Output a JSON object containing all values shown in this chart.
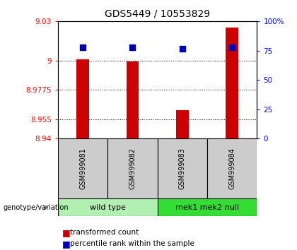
{
  "title": "GDS5449 / 10553829",
  "samples": [
    "GSM999081",
    "GSM999082",
    "GSM999083",
    "GSM999084"
  ],
  "bar_values": [
    9.001,
    8.999,
    8.962,
    9.025
  ],
  "percentile_values": [
    9.01,
    9.01,
    9.009,
    9.01
  ],
  "ymin": 8.94,
  "ymax": 9.03,
  "yticks_left": [
    8.94,
    8.955,
    8.9775,
    9,
    9.03
  ],
  "yticks_right": [
    0,
    25,
    50,
    75,
    100
  ],
  "bar_color": "#cc0000",
  "percentile_color": "#0000bb",
  "group_labels": [
    "wild type",
    "mek1 mek2 null"
  ],
  "group_ranges": [
    [
      0,
      2
    ],
    [
      2,
      4
    ]
  ],
  "group_light_color": "#b2f0b2",
  "group_dark_color": "#33dd33",
  "sample_bg_color": "#cccccc",
  "bar_width": 0.25,
  "dot_size": 30,
  "legend_bar_label": "transformed count",
  "legend_pct_label": "percentile rank within the sample"
}
